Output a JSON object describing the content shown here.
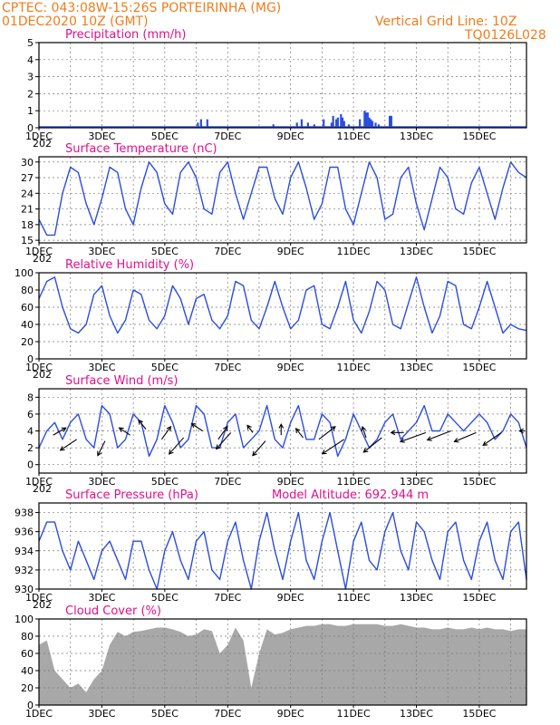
{
  "header": {
    "line1": "CPTEC:   043:08W-15:26S   PORTEIRINHA (MG)",
    "line2": "01DEC2020 10Z (GMT)",
    "right1": "Vertical Grid Line: 10Z",
    "right2": "TQ0126L028"
  },
  "colors": {
    "series": "#2b4de0",
    "cloud": "#a8a8a8",
    "header": "#f07c1a",
    "title": "#e0118a"
  },
  "x_tick_labels": [
    "1DEC",
    "3DEC",
    "5DEC",
    "7DEC",
    "9DEC",
    "11DEC",
    "13DEC",
    "15DEC"
  ],
  "x_stub": "202",
  "chart_data": [
    {
      "id": "precip",
      "type": "bar",
      "title": "Precipitation (mm/h)",
      "xlim": [
        0,
        15.5
      ],
      "ylim": [
        0,
        5
      ],
      "yticks": [
        0,
        1,
        2,
        3,
        4,
        5
      ],
      "x": [
        5.05,
        5.15,
        5.35,
        7.45,
        8.2,
        8.35,
        8.55,
        8.75,
        9.05,
        9.3,
        9.35,
        9.45,
        9.5,
        9.6,
        9.65,
        9.7,
        9.85,
        10.2,
        10.35,
        10.4,
        10.45,
        10.5,
        10.55,
        10.6,
        10.7,
        10.8,
        11.15,
        11.2
      ],
      "values": [
        0.3,
        0.5,
        0.5,
        0.2,
        0.3,
        0.5,
        0.3,
        0.2,
        0.5,
        0.3,
        0.7,
        0.5,
        0.6,
        0.8,
        0.6,
        0.4,
        0.2,
        0.5,
        1.0,
        0.9,
        0.9,
        0.6,
        0.5,
        0.4,
        0.3,
        0.2,
        0.7,
        0.7
      ]
    },
    {
      "id": "temp",
      "type": "line",
      "title": "Surface Temperature (nC)",
      "xlim": [
        0,
        15.5
      ],
      "ylim": [
        14.5,
        31
      ],
      "yticks": [
        15,
        18,
        21,
        24,
        27,
        30
      ],
      "x": [
        0,
        0.25,
        0.5,
        0.75,
        1,
        1.25,
        1.5,
        1.75,
        2,
        2.25,
        2.5,
        2.75,
        3,
        3.25,
        3.5,
        3.75,
        4,
        4.25,
        4.5,
        4.75,
        5,
        5.25,
        5.5,
        5.75,
        6,
        6.25,
        6.5,
        6.75,
        7,
        7.25,
        7.5,
        7.75,
        8,
        8.25,
        8.5,
        8.75,
        9,
        9.25,
        9.5,
        9.75,
        10,
        10.25,
        10.5,
        10.75,
        11,
        11.25,
        11.5,
        11.75,
        12,
        12.25,
        12.5,
        12.75,
        13,
        13.25,
        13.5,
        13.75,
        14,
        14.25,
        14.5,
        14.75,
        15,
        15.25,
        15.5
      ],
      "y": [
        19,
        16,
        16,
        24,
        29,
        28,
        22,
        18,
        23,
        29,
        28,
        21,
        18,
        25,
        30,
        28,
        22,
        20,
        28,
        30,
        27,
        21,
        20,
        28,
        30,
        24,
        19,
        24,
        29,
        29,
        23,
        20,
        27,
        30,
        25,
        19,
        22,
        29,
        29,
        21,
        18,
        24,
        30,
        27,
        19,
        20,
        27,
        29,
        22,
        17,
        23,
        29,
        27,
        21,
        20,
        26,
        29,
        24,
        19,
        25,
        30,
        28,
        27
      ]
    },
    {
      "id": "rh",
      "type": "line",
      "title": "Relative Humidity (%)",
      "xlim": [
        0,
        15.5
      ],
      "ylim": [
        0,
        100
      ],
      "yticks": [
        0,
        20,
        40,
        60,
        80,
        100
      ],
      "x": [
        0,
        0.25,
        0.5,
        0.75,
        1,
        1.25,
        1.5,
        1.75,
        2,
        2.25,
        2.5,
        2.75,
        3,
        3.25,
        3.5,
        3.75,
        4,
        4.25,
        4.5,
        4.75,
        5,
        5.25,
        5.5,
        5.75,
        6,
        6.25,
        6.5,
        6.75,
        7,
        7.25,
        7.5,
        7.75,
        8,
        8.25,
        8.5,
        8.75,
        9,
        9.25,
        9.5,
        9.75,
        10,
        10.25,
        10.5,
        10.75,
        11,
        11.25,
        11.5,
        11.75,
        12,
        12.25,
        12.5,
        12.75,
        13,
        13.25,
        13.5,
        13.75,
        14,
        14.25,
        14.5,
        14.75,
        15,
        15.25,
        15.5
      ],
      "y": [
        70,
        90,
        95,
        60,
        35,
        30,
        40,
        75,
        85,
        50,
        30,
        45,
        80,
        75,
        45,
        35,
        50,
        85,
        70,
        40,
        70,
        75,
        45,
        35,
        50,
        90,
        85,
        45,
        35,
        60,
        90,
        60,
        35,
        45,
        80,
        85,
        40,
        35,
        60,
        90,
        45,
        30,
        55,
        90,
        80,
        40,
        35,
        65,
        95,
        60,
        30,
        50,
        90,
        85,
        40,
        35,
        60,
        90,
        60,
        30,
        40,
        35,
        33
      ]
    },
    {
      "id": "wind",
      "type": "line",
      "title": "Surface Wind (m/s)",
      "xlim": [
        0,
        15.5
      ],
      "ylim": [
        -1,
        9
      ],
      "yticks": [
        0,
        2,
        4,
        6,
        8
      ],
      "x": [
        0,
        0.25,
        0.5,
        0.75,
        1,
        1.25,
        1.5,
        1.75,
        2,
        2.25,
        2.5,
        2.75,
        3,
        3.25,
        3.5,
        3.75,
        4,
        4.25,
        4.5,
        4.75,
        5,
        5.25,
        5.5,
        5.75,
        6,
        6.25,
        6.5,
        6.75,
        7,
        7.25,
        7.5,
        7.75,
        8,
        8.25,
        8.5,
        8.75,
        9,
        9.25,
        9.5,
        9.75,
        10,
        10.25,
        10.5,
        10.75,
        11,
        11.25,
        11.5,
        11.75,
        12,
        12.25,
        12.5,
        12.75,
        13,
        13.25,
        13.5,
        13.75,
        14,
        14.25,
        14.5,
        14.75,
        15,
        15.25,
        15.5
      ],
      "y": [
        2,
        4,
        5,
        3,
        5,
        6,
        3,
        2,
        7,
        6,
        2,
        3,
        6,
        5,
        1,
        3,
        7,
        5,
        2,
        3,
        7,
        6,
        2,
        2,
        5,
        6,
        2,
        3,
        4,
        7,
        3,
        2,
        5,
        7,
        3,
        3,
        6,
        5,
        1,
        3,
        6,
        4,
        2,
        3,
        5,
        6,
        3,
        4,
        5,
        7,
        4,
        4,
        6,
        5,
        4,
        5,
        6,
        5,
        3,
        4,
        6,
        5,
        2
      ],
      "arrows": [
        {
          "x": 0.45,
          "y": 3.5,
          "dx": 14,
          "dy": -8
        },
        {
          "x": 1.2,
          "y": 3.0,
          "dx": -18,
          "dy": 12
        },
        {
          "x": 2.1,
          "y": 2.8,
          "dx": -8,
          "dy": 16
        },
        {
          "x": 2.9,
          "y": 3.5,
          "dx": -12,
          "dy": -8
        },
        {
          "x": 3.4,
          "y": 4.2,
          "dx": -8,
          "dy": -10
        },
        {
          "x": 3.9,
          "y": 3.0,
          "dx": 10,
          "dy": -14
        },
        {
          "x": 4.6,
          "y": 3.2,
          "dx": -16,
          "dy": 18
        },
        {
          "x": 5.2,
          "y": 4.0,
          "dx": -12,
          "dy": -8
        },
        {
          "x": 5.7,
          "y": 3.0,
          "dx": 10,
          "dy": -14
        },
        {
          "x": 6.1,
          "y": 3.8,
          "dx": -16,
          "dy": 18
        },
        {
          "x": 6.8,
          "y": 3.8,
          "dx": -6,
          "dy": -8
        },
        {
          "x": 7.2,
          "y": 2.8,
          "dx": -14,
          "dy": 16
        },
        {
          "x": 7.7,
          "y": 3.5,
          "dx": 0,
          "dy": -12
        },
        {
          "x": 8.4,
          "y": 3.2,
          "dx": -8,
          "dy": -10
        },
        {
          "x": 8.9,
          "y": 3.0,
          "dx": 18,
          "dy": -14
        },
        {
          "x": 9.7,
          "y": 3.0,
          "dx": -24,
          "dy": 16
        },
        {
          "x": 10.4,
          "y": 3.2,
          "dx": -4,
          "dy": -12
        },
        {
          "x": 10.9,
          "y": 3.2,
          "dx": -20,
          "dy": 16
        },
        {
          "x": 11.6,
          "y": 3.8,
          "dx": -14,
          "dy": 0
        },
        {
          "x": 12.3,
          "y": 3.8,
          "dx": -28,
          "dy": 10
        },
        {
          "x": 13.1,
          "y": 4.0,
          "dx": -26,
          "dy": 10
        },
        {
          "x": 13.9,
          "y": 3.8,
          "dx": -24,
          "dy": 10
        },
        {
          "x": 14.7,
          "y": 3.8,
          "dx": -20,
          "dy": 14
        },
        {
          "x": 15.45,
          "y": 4.0,
          "dx": -6,
          "dy": 0
        }
      ]
    },
    {
      "id": "pressure",
      "type": "line",
      "title": "Surface Pressure (hPa)",
      "annotation": "Model Altitude: 692.944  m",
      "xlim": [
        0,
        15.5
      ],
      "ylim": [
        930,
        939
      ],
      "yticks": [
        930,
        932,
        934,
        936,
        938
      ],
      "x": [
        0,
        0.25,
        0.5,
        0.75,
        1,
        1.25,
        1.5,
        1.75,
        2,
        2.25,
        2.5,
        2.75,
        3,
        3.25,
        3.5,
        3.75,
        4,
        4.25,
        4.5,
        4.75,
        5,
        5.25,
        5.5,
        5.75,
        6,
        6.25,
        6.5,
        6.75,
        7,
        7.25,
        7.5,
        7.75,
        8,
        8.25,
        8.5,
        8.75,
        9,
        9.25,
        9.5,
        9.75,
        10,
        10.25,
        10.5,
        10.75,
        11,
        11.25,
        11.5,
        11.75,
        12,
        12.25,
        12.5,
        12.75,
        13,
        13.25,
        13.5,
        13.75,
        14,
        14.25,
        14.5,
        14.75,
        15,
        15.25,
        15.5
      ],
      "y": [
        935,
        937,
        937,
        934,
        932,
        935,
        933,
        931,
        934,
        935,
        933,
        931,
        935,
        935,
        932,
        930,
        934,
        936,
        933,
        931,
        935,
        936,
        932,
        931,
        935,
        937,
        933,
        930,
        935,
        938,
        934,
        931,
        935,
        938,
        933,
        931,
        935,
        938,
        934,
        930,
        935,
        937,
        933,
        932,
        936,
        938,
        934,
        932,
        937,
        936,
        933,
        931,
        936,
        937,
        933,
        931,
        935,
        937,
        933,
        931,
        936,
        937,
        931
      ]
    },
    {
      "id": "cloud",
      "type": "area",
      "title": "Cloud Cover (%)",
      "xlim": [
        0,
        15.5
      ],
      "ylim": [
        0,
        100
      ],
      "yticks": [
        0,
        20,
        40,
        60,
        80,
        100
      ],
      "x": [
        0,
        0.25,
        0.5,
        0.75,
        1,
        1.25,
        1.5,
        1.75,
        2,
        2.25,
        2.5,
        2.75,
        3,
        3.25,
        3.5,
        3.75,
        4,
        4.25,
        4.5,
        4.75,
        5,
        5.25,
        5.5,
        5.75,
        6,
        6.25,
        6.5,
        6.75,
        7,
        7.25,
        7.5,
        7.75,
        8,
        8.25,
        8.5,
        8.75,
        9,
        9.25,
        9.5,
        9.75,
        10,
        10.25,
        10.5,
        10.75,
        11,
        11.25,
        11.5,
        11.75,
        12,
        12.25,
        12.5,
        12.75,
        13,
        13.25,
        13.5,
        13.75,
        14,
        14.25,
        14.5,
        14.75,
        15,
        15.25,
        15.5
      ],
      "y": [
        70,
        75,
        40,
        30,
        20,
        25,
        15,
        30,
        40,
        70,
        85,
        80,
        85,
        86,
        88,
        90,
        90,
        88,
        85,
        80,
        82,
        88,
        86,
        60,
        70,
        90,
        75,
        20,
        60,
        88,
        82,
        84,
        88,
        90,
        92,
        92,
        94,
        94,
        92,
        92,
        94,
        94,
        94,
        94,
        92,
        92,
        94,
        92,
        90,
        90,
        88,
        88,
        90,
        88,
        88,
        90,
        88,
        90,
        88,
        88,
        86,
        88,
        88
      ]
    }
  ]
}
